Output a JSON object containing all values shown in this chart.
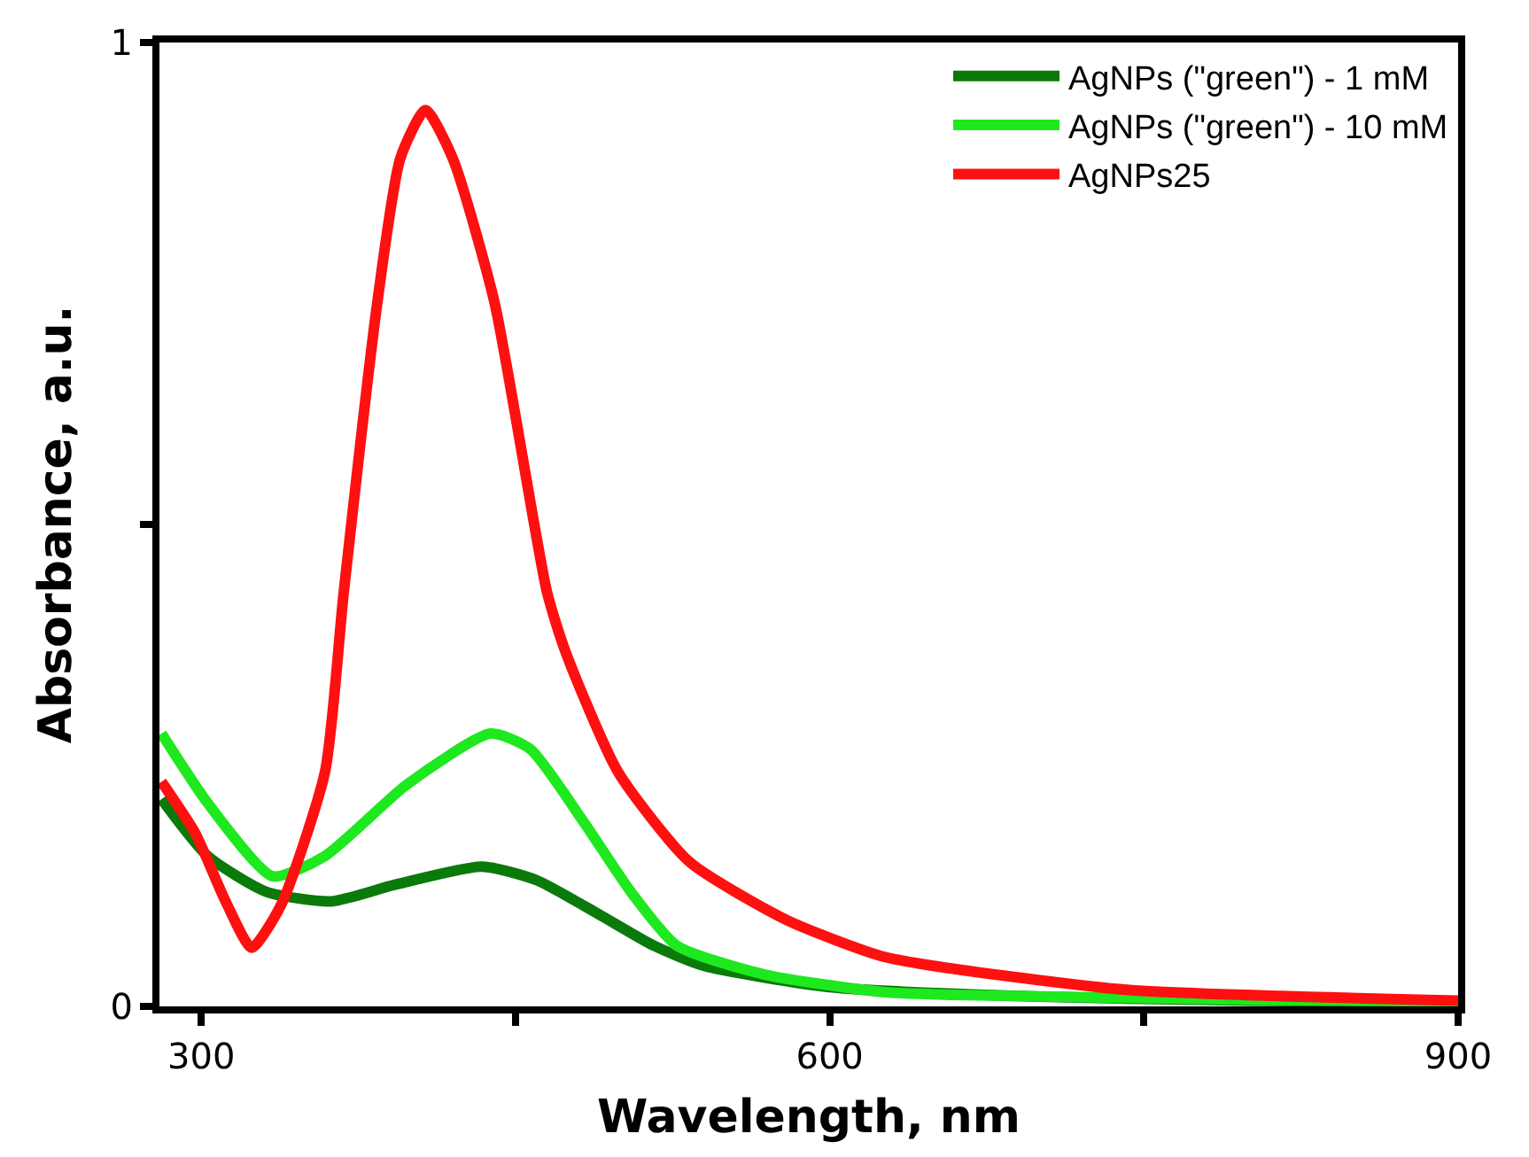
{
  "chart_data": {
    "type": "line",
    "xlabel": "Wavelength, nm",
    "ylabel": "Absorbance, a.u.",
    "xlim": [
      280,
      900
    ],
    "ylim": [
      0,
      1
    ],
    "xticks": [
      300,
      {
        "value": 450,
        "label": null
      },
      600,
      {
        "value": 750,
        "label": null
      },
      900
    ],
    "yticks": [
      0,
      {
        "value": 0.5,
        "label": null
      },
      1
    ],
    "legend": "top right",
    "marker": "none",
    "line_style": "solid",
    "series": [
      {
        "name": "AgNPs (\"green\") - 1 mM",
        "color": "#0a7a0a",
        "x": [
          281,
          303,
          331,
          362,
          392,
          434,
          460,
          491,
          516,
          540,
          600,
          700,
          800,
          900
        ],
        "values": [
          0.215,
          0.156,
          0.119,
          0.109,
          0.126,
          0.145,
          0.131,
          0.094,
          0.063,
          0.042,
          0.02,
          0.01,
          0.006,
          0.004
        ]
      },
      {
        "name": "AgNPs (\"green\") - 10 mM",
        "color": "#1ee81e",
        "x": [
          281,
          303,
          334,
          359,
          398,
          438,
          457,
          482,
          505,
          527,
          569,
          625,
          659,
          799,
          900
        ],
        "values": [
          0.283,
          0.211,
          0.135,
          0.156,
          0.23,
          0.283,
          0.267,
          0.193,
          0.119,
          0.063,
          0.033,
          0.015,
          0.012,
          0.007,
          0.005
        ]
      },
      {
        "name": "AgNPs25",
        "color": "#ff1010",
        "x": [
          281,
          297,
          312,
          324,
          338,
          359,
          368,
          384,
          395,
          407,
          420,
          440,
          465,
          474,
          499,
          533,
          580,
          625,
          659,
          743,
          900
        ],
        "values": [
          0.233,
          0.18,
          0.107,
          0.061,
          0.105,
          0.243,
          0.43,
          0.73,
          0.88,
          0.93,
          0.88,
          0.73,
          0.43,
          0.367,
          0.243,
          0.15,
          0.089,
          0.052,
          0.039,
          0.017,
          0.006
        ]
      }
    ]
  }
}
